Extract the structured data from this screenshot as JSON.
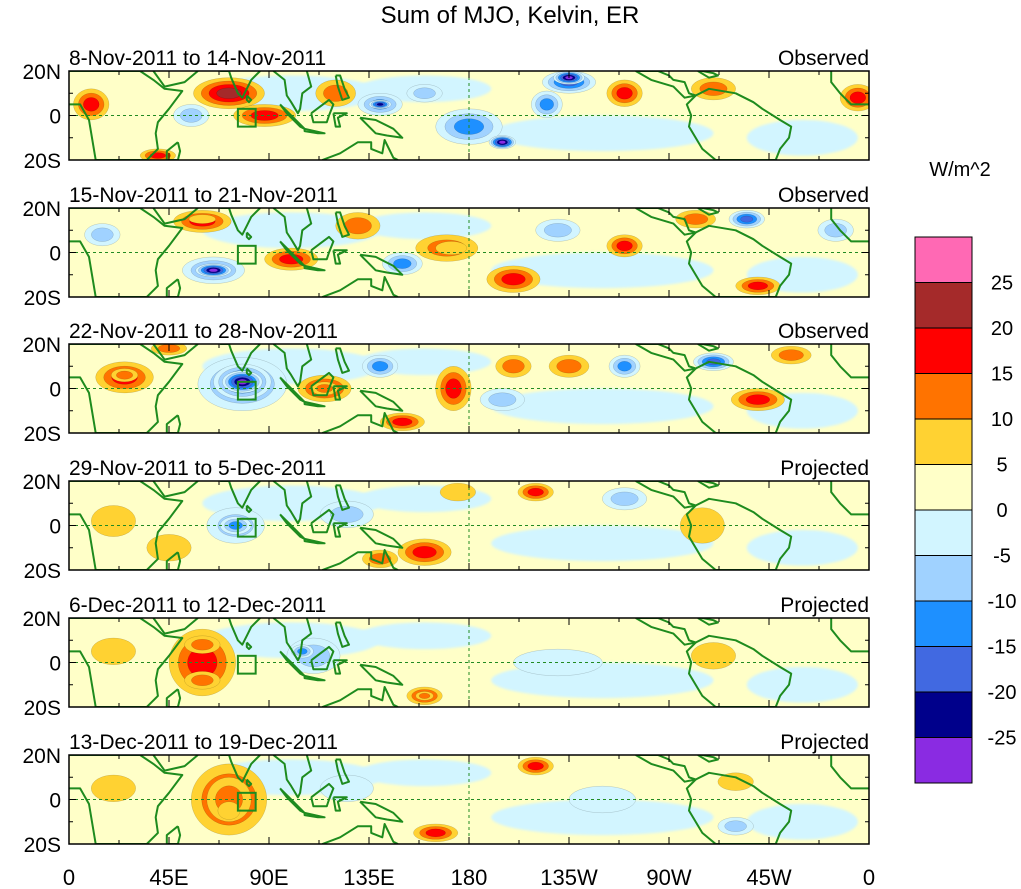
{
  "title": "Sum of MJO, Kelvin, ER",
  "panels": [
    {
      "date_range": "8-Nov-2011 to 14-Nov-2011",
      "status": "Observed"
    },
    {
      "date_range": "15-Nov-2011 to 21-Nov-2011",
      "status": "Observed"
    },
    {
      "date_range": "22-Nov-2011 to 28-Nov-2011",
      "status": "Observed"
    },
    {
      "date_range": "29-Nov-2011 to 5-Dec-2011",
      "status": "Projected"
    },
    {
      "date_range": "6-Dec-2011 to 12-Dec-2011",
      "status": "Projected"
    },
    {
      "date_range": "13-Dec-2011 to 19-Dec-2011",
      "status": "Projected"
    }
  ],
  "lat_labels": [
    "20N",
    "0",
    "20S"
  ],
  "lon_labels": [
    "0",
    "45E",
    "90E",
    "135E",
    "180",
    "135W",
    "90W",
    "45W",
    "0"
  ],
  "colorbar": {
    "unit": "W/m^2",
    "labels": [
      "25",
      "20",
      "15",
      "10",
      "5",
      "0",
      "-5",
      "-10",
      "-15",
      "-20",
      "-25"
    ],
    "colors": [
      "#ff69b4",
      "#a52a2a",
      "#ff0000",
      "#ff7300",
      "#ffd232",
      "#ffffc8",
      "#d2f5ff",
      "#a0d2ff",
      "#1e90ff",
      "#4169e1",
      "#00008b",
      "#8a2be2"
    ]
  },
  "blobs": [
    [
      {
        "lon": 72,
        "lat": 10,
        "rx": 16,
        "ry": 7,
        "level": 4
      },
      {
        "lon": 72,
        "lat": 12,
        "rx": 9,
        "ry": 4,
        "level": 0
      },
      {
        "lon": 88,
        "lat": 0,
        "rx": 14,
        "ry": 5,
        "level": 3
      },
      {
        "lon": 88,
        "lat": 0,
        "rx": 8,
        "ry": 3,
        "level": 0
      },
      {
        "lon": 120,
        "lat": 10,
        "rx": 9,
        "ry": 6,
        "level": 2
      },
      {
        "lon": 140,
        "lat": 5,
        "rx": 10,
        "ry": 5,
        "level": -3
      },
      {
        "lon": 140,
        "lat": 5,
        "rx": 5,
        "ry": 2,
        "level": -5
      },
      {
        "lon": 180,
        "lat": -5,
        "rx": 15,
        "ry": 8,
        "level": -3
      },
      {
        "lon": 195,
        "lat": -12,
        "rx": 6,
        "ry": 3,
        "level": -6
      },
      {
        "lon": 215,
        "lat": 5,
        "rx": 7,
        "ry": 6,
        "level": -3
      },
      {
        "lon": 225,
        "lat": 15,
        "rx": 12,
        "ry": 5,
        "level": -4
      },
      {
        "lon": 225,
        "lat": 17,
        "rx": 7,
        "ry": 3,
        "level": -6
      },
      {
        "lon": 250,
        "lat": 10,
        "rx": 8,
        "ry": 6,
        "level": 3
      },
      {
        "lon": 290,
        "lat": 12,
        "rx": 10,
        "ry": 5,
        "level": 2
      },
      {
        "lon": 10,
        "lat": 5,
        "rx": 8,
        "ry": 7,
        "level": 3
      },
      {
        "lon": 355,
        "lat": 8,
        "rx": 8,
        "ry": 6,
        "level": 3
      },
      {
        "lon": 40,
        "lat": -18,
        "rx": 8,
        "ry": 3,
        "level": 3
      },
      {
        "lon": 55,
        "lat": 0,
        "rx": 8,
        "ry": 5,
        "level": -2
      },
      {
        "lon": 160,
        "lat": 10,
        "rx": 8,
        "ry": 4,
        "level": -2
      }
    ],
    [
      {
        "lon": 60,
        "lat": 14,
        "rx": 13,
        "ry": 5,
        "level": 3
      },
      {
        "lon": 60,
        "lat": 15,
        "rx": 6,
        "ry": 2,
        "level": 1
      },
      {
        "lon": 65,
        "lat": -8,
        "rx": 14,
        "ry": 6,
        "level": -3
      },
      {
        "lon": 65,
        "lat": -8,
        "rx": 8,
        "ry": 3,
        "level": -6
      },
      {
        "lon": 100,
        "lat": -3,
        "rx": 12,
        "ry": 5,
        "level": 3
      },
      {
        "lon": 130,
        "lat": 12,
        "rx": 10,
        "ry": 6,
        "level": 2
      },
      {
        "lon": 130,
        "lat": 12,
        "rx": 5,
        "ry": 3,
        "level": 0
      },
      {
        "lon": 170,
        "lat": 2,
        "rx": 14,
        "ry": 6,
        "level": 2
      },
      {
        "lon": 172,
        "lat": 2,
        "rx": 7,
        "ry": 3,
        "level": 1
      },
      {
        "lon": 200,
        "lat": -12,
        "rx": 12,
        "ry": 6,
        "level": 3
      },
      {
        "lon": 200,
        "lat": -12,
        "rx": 6,
        "ry": 3,
        "level": 0
      },
      {
        "lon": 150,
        "lat": -5,
        "rx": 9,
        "ry": 5,
        "level": -3
      },
      {
        "lon": 220,
        "lat": 10,
        "rx": 10,
        "ry": 5,
        "level": -2
      },
      {
        "lon": 250,
        "lat": 3,
        "rx": 8,
        "ry": 5,
        "level": 3
      },
      {
        "lon": 282,
        "lat": 15,
        "rx": 9,
        "ry": 4,
        "level": 2
      },
      {
        "lon": 282,
        "lat": 15,
        "rx": 4,
        "ry": 2,
        "level": 0
      },
      {
        "lon": 305,
        "lat": 15,
        "rx": 8,
        "ry": 4,
        "level": -4
      },
      {
        "lon": 310,
        "lat": -15,
        "rx": 10,
        "ry": 4,
        "level": 3
      },
      {
        "lon": 345,
        "lat": 10,
        "rx": 8,
        "ry": 5,
        "level": -2
      },
      {
        "lon": 15,
        "lat": 8,
        "rx": 8,
        "ry": 5,
        "level": -2
      }
    ],
    [
      {
        "lon": 25,
        "lat": 5,
        "rx": 13,
        "ry": 7,
        "level": 3
      },
      {
        "lon": 25,
        "lat": 6,
        "rx": 6,
        "ry": 3,
        "level": 2
      },
      {
        "lon": 78,
        "lat": 2,
        "rx": 20,
        "ry": 12,
        "level": -3
      },
      {
        "lon": 78,
        "lat": 3,
        "rx": 13,
        "ry": 8,
        "level": -5
      },
      {
        "lon": 78,
        "lat": 3,
        "rx": 9,
        "ry": 5,
        "level": -6
      },
      {
        "lon": 115,
        "lat": 0,
        "rx": 12,
        "ry": 6,
        "level": 3
      },
      {
        "lon": 115,
        "lat": 0,
        "rx": 6,
        "ry": 3,
        "level": 2
      },
      {
        "lon": 140,
        "lat": 10,
        "rx": 8,
        "ry": 5,
        "level": -3
      },
      {
        "lon": 173,
        "lat": 0,
        "rx": 8,
        "ry": 10,
        "level": 3
      },
      {
        "lon": 200,
        "lat": 10,
        "rx": 8,
        "ry": 5,
        "level": 2
      },
      {
        "lon": 225,
        "lat": 10,
        "rx": 9,
        "ry": 5,
        "level": 2
      },
      {
        "lon": 250,
        "lat": 10,
        "rx": 7,
        "ry": 5,
        "level": -3
      },
      {
        "lon": 290,
        "lat": 12,
        "rx": 9,
        "ry": 4,
        "level": -4
      },
      {
        "lon": 325,
        "lat": 15,
        "rx": 9,
        "ry": 4,
        "level": 2
      },
      {
        "lon": 310,
        "lat": -5,
        "rx": 12,
        "ry": 5,
        "level": 3
      },
      {
        "lon": 150,
        "lat": -15,
        "rx": 10,
        "ry": 4,
        "level": 3
      },
      {
        "lon": 45,
        "lat": 18,
        "rx": 8,
        "ry": 3,
        "level": 2
      },
      {
        "lon": 195,
        "lat": -5,
        "rx": 10,
        "ry": 5,
        "level": -2
      }
    ],
    [
      {
        "lon": 75,
        "lat": 0,
        "rx": 13,
        "ry": 8,
        "level": -2
      },
      {
        "lon": 75,
        "lat": 0,
        "rx": 7,
        "ry": 4,
        "level": -3
      },
      {
        "lon": 160,
        "lat": -12,
        "rx": 12,
        "ry": 6,
        "level": 3
      },
      {
        "lon": 140,
        "lat": -15,
        "rx": 8,
        "ry": 4,
        "level": 2
      },
      {
        "lon": 210,
        "lat": 15,
        "rx": 8,
        "ry": 4,
        "level": 3
      },
      {
        "lon": 250,
        "lat": 12,
        "rx": 10,
        "ry": 5,
        "level": -2
      },
      {
        "lon": 285,
        "lat": 0,
        "rx": 10,
        "ry": 8,
        "level": 1
      },
      {
        "lon": 125,
        "lat": 5,
        "rx": 12,
        "ry": 6,
        "level": -2
      },
      {
        "lon": 45,
        "lat": -10,
        "rx": 10,
        "ry": 6,
        "level": 1
      },
      {
        "lon": 20,
        "lat": 2,
        "rx": 10,
        "ry": 7,
        "level": 1
      },
      {
        "lon": 175,
        "lat": 15,
        "rx": 8,
        "ry": 4,
        "level": 1
      }
    ],
    [
      {
        "lon": 60,
        "lat": 0,
        "rx": 15,
        "ry": 15,
        "level": 3
      },
      {
        "lon": 60,
        "lat": 8,
        "rx": 8,
        "ry": 4,
        "level": 2
      },
      {
        "lon": 60,
        "lat": -8,
        "rx": 8,
        "ry": 4,
        "level": 2
      },
      {
        "lon": 110,
        "lat": 3,
        "rx": 12,
        "ry": 8,
        "level": -2
      },
      {
        "lon": 105,
        "lat": 5,
        "rx": 5,
        "ry": 3,
        "level": -3
      },
      {
        "lon": 160,
        "lat": -15,
        "rx": 8,
        "ry": 4,
        "level": 3
      },
      {
        "lon": 160,
        "lat": -15,
        "rx": 4,
        "ry": 2,
        "level": 2
      },
      {
        "lon": 220,
        "lat": 0,
        "rx": 20,
        "ry": 6,
        "level": -1
      },
      {
        "lon": 290,
        "lat": 3,
        "rx": 10,
        "ry": 6,
        "level": 1
      },
      {
        "lon": 20,
        "lat": 5,
        "rx": 10,
        "ry": 6,
        "level": 1
      }
    ],
    [
      {
        "lon": 72,
        "lat": 0,
        "rx": 17,
        "ry": 16,
        "level": 3
      },
      {
        "lon": 72,
        "lat": 0,
        "rx": 10,
        "ry": 10,
        "level": 2
      },
      {
        "lon": 72,
        "lat": -5,
        "rx": 5,
        "ry": 4,
        "level": 1
      },
      {
        "lon": 165,
        "lat": -15,
        "rx": 10,
        "ry": 4,
        "level": 3
      },
      {
        "lon": 210,
        "lat": 15,
        "rx": 8,
        "ry": 4,
        "level": 3
      },
      {
        "lon": 125,
        "lat": 5,
        "rx": 12,
        "ry": 6,
        "level": -1
      },
      {
        "lon": 240,
        "lat": 0,
        "rx": 15,
        "ry": 6,
        "level": -1
      },
      {
        "lon": 300,
        "lat": -12,
        "rx": 8,
        "ry": 4,
        "level": -2
      },
      {
        "lon": 20,
        "lat": 5,
        "rx": 10,
        "ry": 6,
        "level": 1
      },
      {
        "lon": 300,
        "lat": 8,
        "rx": 8,
        "ry": 4,
        "level": 1
      }
    ]
  ]
}
